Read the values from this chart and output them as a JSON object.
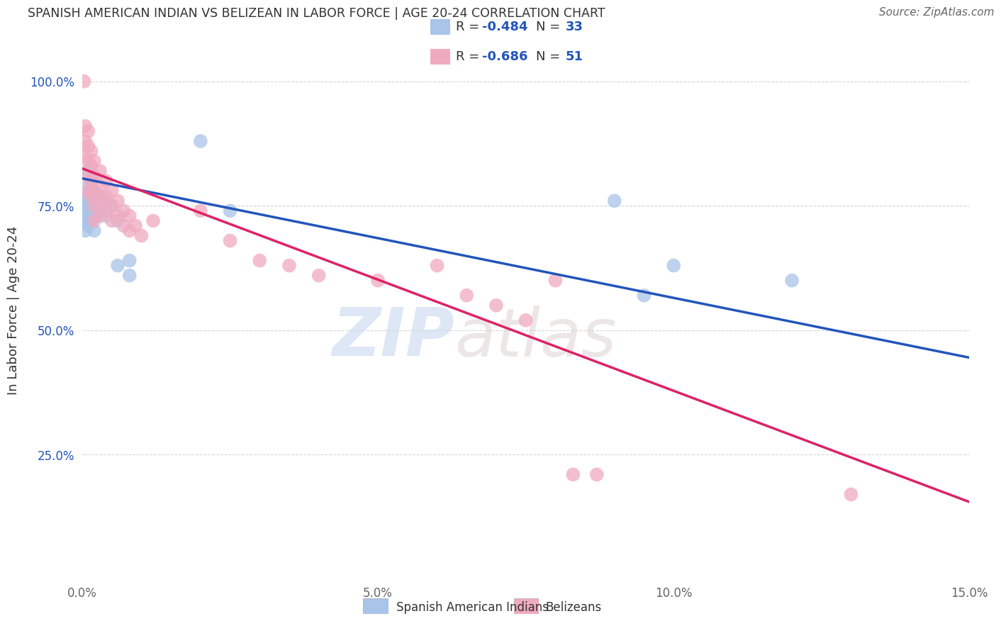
{
  "title": "SPANISH AMERICAN INDIAN VS BELIZEAN IN LABOR FORCE | AGE 20-24 CORRELATION CHART",
  "source": "Source: ZipAtlas.com",
  "ylabel": "In Labor Force | Age 20-24",
  "xlim": [
    0.0,
    0.15
  ],
  "ylim": [
    0.0,
    1.08
  ],
  "yticks": [
    0.25,
    0.5,
    0.75,
    1.0
  ],
  "ytick_labels": [
    "25.0%",
    "50.0%",
    "75.0%",
    "100.0%"
  ],
  "xticks": [
    0.0,
    0.05,
    0.1,
    0.15
  ],
  "xtick_labels": [
    "0.0%",
    "5.0%",
    "10.0%",
    "15.0%"
  ],
  "blue_R": -0.484,
  "blue_N": 33,
  "pink_R": -0.686,
  "pink_N": 51,
  "blue_color": "#a8c4e8",
  "pink_color": "#f0aabf",
  "blue_line_color": "#2255bb",
  "pink_line_color": "#dd2266",
  "blue_scatter": [
    [
      0.0005,
      0.76
    ],
    [
      0.0005,
      0.74
    ],
    [
      0.0005,
      0.72
    ],
    [
      0.0005,
      0.7
    ],
    [
      0.001,
      0.82
    ],
    [
      0.001,
      0.79
    ],
    [
      0.001,
      0.77
    ],
    [
      0.001,
      0.75
    ],
    [
      0.001,
      0.73
    ],
    [
      0.001,
      0.71
    ],
    [
      0.0015,
      0.8
    ],
    [
      0.0015,
      0.78
    ],
    [
      0.0015,
      0.75
    ],
    [
      0.0015,
      0.72
    ],
    [
      0.002,
      0.78
    ],
    [
      0.002,
      0.76
    ],
    [
      0.002,
      0.73
    ],
    [
      0.002,
      0.7
    ],
    [
      0.003,
      0.77
    ],
    [
      0.003,
      0.74
    ],
    [
      0.004,
      0.76
    ],
    [
      0.004,
      0.73
    ],
    [
      0.005,
      0.75
    ],
    [
      0.006,
      0.72
    ],
    [
      0.006,
      0.63
    ],
    [
      0.008,
      0.64
    ],
    [
      0.008,
      0.61
    ],
    [
      0.02,
      0.88
    ],
    [
      0.025,
      0.74
    ],
    [
      0.09,
      0.76
    ],
    [
      0.095,
      0.57
    ],
    [
      0.1,
      0.63
    ],
    [
      0.12,
      0.6
    ]
  ],
  "pink_scatter": [
    [
      0.0003,
      1.0
    ],
    [
      0.0005,
      0.91
    ],
    [
      0.0005,
      0.88
    ],
    [
      0.0005,
      0.85
    ],
    [
      0.001,
      0.9
    ],
    [
      0.001,
      0.87
    ],
    [
      0.001,
      0.84
    ],
    [
      0.001,
      0.81
    ],
    [
      0.001,
      0.78
    ],
    [
      0.0015,
      0.86
    ],
    [
      0.0015,
      0.83
    ],
    [
      0.0015,
      0.8
    ],
    [
      0.0015,
      0.77
    ],
    [
      0.002,
      0.84
    ],
    [
      0.002,
      0.81
    ],
    [
      0.002,
      0.78
    ],
    [
      0.002,
      0.75
    ],
    [
      0.002,
      0.72
    ],
    [
      0.003,
      0.82
    ],
    [
      0.003,
      0.79
    ],
    [
      0.003,
      0.76
    ],
    [
      0.003,
      0.73
    ],
    [
      0.004,
      0.8
    ],
    [
      0.004,
      0.77
    ],
    [
      0.004,
      0.74
    ],
    [
      0.005,
      0.78
    ],
    [
      0.005,
      0.75
    ],
    [
      0.005,
      0.72
    ],
    [
      0.006,
      0.76
    ],
    [
      0.006,
      0.73
    ],
    [
      0.007,
      0.74
    ],
    [
      0.007,
      0.71
    ],
    [
      0.008,
      0.73
    ],
    [
      0.008,
      0.7
    ],
    [
      0.009,
      0.71
    ],
    [
      0.01,
      0.69
    ],
    [
      0.012,
      0.72
    ],
    [
      0.02,
      0.74
    ],
    [
      0.025,
      0.68
    ],
    [
      0.03,
      0.64
    ],
    [
      0.035,
      0.63
    ],
    [
      0.04,
      0.61
    ],
    [
      0.05,
      0.6
    ],
    [
      0.06,
      0.63
    ],
    [
      0.065,
      0.57
    ],
    [
      0.07,
      0.55
    ],
    [
      0.075,
      0.52
    ],
    [
      0.08,
      0.6
    ],
    [
      0.083,
      0.21
    ],
    [
      0.087,
      0.21
    ],
    [
      0.13,
      0.17
    ]
  ],
  "blue_trend": [
    0.0,
    0.15
  ],
  "blue_trend_y": [
    0.805,
    0.445
  ],
  "pink_trend": [
    0.0,
    0.15
  ],
  "pink_trend_y": [
    0.825,
    0.155
  ],
  "watermark_zip": "ZIP",
  "watermark_atlas": "atlas",
  "background_color": "#ffffff",
  "grid_color": "#cccccc",
  "title_color": "#333333",
  "axis_color": "#666666"
}
